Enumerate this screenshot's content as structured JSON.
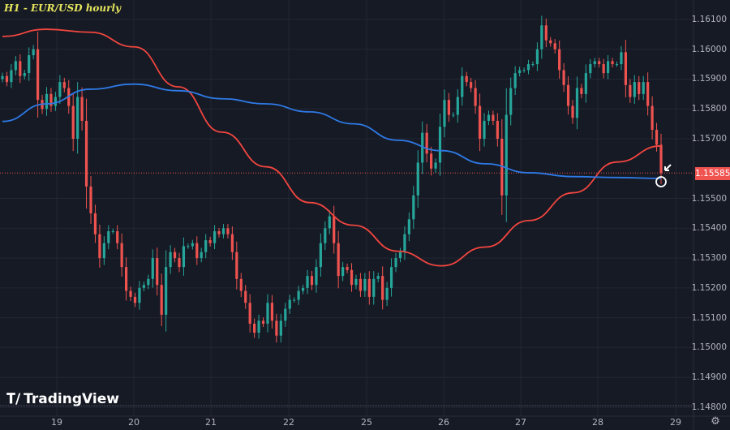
{
  "header": {
    "title": "H1 - EUR/USD hourly"
  },
  "branding": {
    "logo_text": "TradingView"
  },
  "colors": {
    "background": "#161a25",
    "up": "#26a69a",
    "down": "#ef5350",
    "ma_red": "#f2463f",
    "ma_blue": "#2e7ae6",
    "title": "#e6e65c",
    "grid": "#232733"
  },
  "icons": {
    "settings": "gear-icon",
    "marker": "circle-marker",
    "arrow": "arrow-down-left-icon"
  },
  "chart_data": {
    "type": "candlestick",
    "title": "H1 - EUR/USD hourly",
    "ylim": [
      1.1477,
      1.16165
    ],
    "y_ticks": [
      "1.16100",
      "1.16000",
      "1.15900",
      "1.15800",
      "1.15700",
      "1.15500",
      "1.15400",
      "1.15300",
      "1.15200",
      "1.15100",
      "1.15000",
      "1.14900",
      "1.14800"
    ],
    "x_ticks": [
      "19",
      "20",
      "21",
      "22",
      "25",
      "26",
      "27",
      "28",
      "29"
    ],
    "last_price": "1.15585",
    "first_open": 1.159,
    "closes": [
      1.1591,
      1.1589,
      1.1593,
      1.1596,
      1.1591,
      1.1592,
      1.1598,
      1.16,
      1.1583,
      1.158,
      1.1585,
      1.1581,
      1.1584,
      1.1589,
      1.1587,
      1.1581,
      1.157,
      1.1584,
      1.1576,
      1.1554,
      1.1545,
      1.1538,
      1.153,
      1.1535,
      1.1539,
      1.1539,
      1.1535,
      1.1527,
      1.1519,
      1.1517,
      1.1515,
      1.152,
      1.1521,
      1.1523,
      1.153,
      1.1521,
      1.1511,
      1.1527,
      1.1532,
      1.153,
      1.1527,
      1.1534,
      1.1534,
      1.1535,
      1.153,
      1.1532,
      1.1536,
      1.1535,
      1.1539,
      1.1538,
      1.154,
      1.1538,
      1.1532,
      1.1523,
      1.1519,
      1.1515,
      1.1508,
      1.1505,
      1.1509,
      1.1508,
      1.1515,
      1.1509,
      1.1504,
      1.1509,
      1.1513,
      1.1516,
      1.1516,
      1.1519,
      1.152,
      1.1524,
      1.1521,
      1.1527,
      1.1535,
      1.154,
      1.1544,
      1.1535,
      1.1524,
      1.1527,
      1.1526,
      1.1521,
      1.1523,
      1.1519,
      1.1523,
      1.1517,
      1.1523,
      1.1524,
      1.1516,
      1.152,
      1.1527,
      1.153,
      1.1532,
      1.1538,
      1.1543,
      1.1551,
      1.1562,
      1.1572,
      1.1565,
      1.156,
      1.1562,
      1.1574,
      1.1583,
      1.1578,
      1.1578,
      1.1584,
      1.1591,
      1.1589,
      1.1587,
      1.1581,
      1.157,
      1.1576,
      1.1578,
      1.1576,
      1.157,
      1.1551,
      1.1578,
      1.1587,
      1.1592,
      1.1593,
      1.1593,
      1.1595,
      1.1595,
      1.16,
      1.1608,
      1.1603,
      1.1602,
      1.16,
      1.1593,
      1.1588,
      1.1581,
      1.1577,
      1.1587,
      1.1585,
      1.1592,
      1.1595,
      1.1596,
      1.1595,
      1.1592,
      1.1596,
      1.1595,
      1.1595,
      1.1599,
      1.1588,
      1.1584,
      1.1589,
      1.1585,
      1.1589,
      1.1581,
      1.1573,
      1.1568,
      1.15585
    ],
    "moving_averages": [
      {
        "color": "#f2463f",
        "values": [
          1.16043,
          1.16067,
          1.16057,
          1.16008,
          1.15874,
          1.15722,
          1.15606,
          1.15486,
          1.1541,
          1.15323,
          1.15274,
          1.15337,
          1.15426,
          1.15519,
          1.15622,
          1.15676
        ]
      },
      {
        "color": "#2e7ae6",
        "values": [
          1.15758,
          1.15817,
          1.15866,
          1.15883,
          1.15861,
          1.15834,
          1.15817,
          1.1579,
          1.1575,
          1.15695,
          1.1566,
          1.15616,
          1.15586,
          1.15573,
          1.1557,
          1.15567
        ]
      }
    ],
    "grid": true
  }
}
